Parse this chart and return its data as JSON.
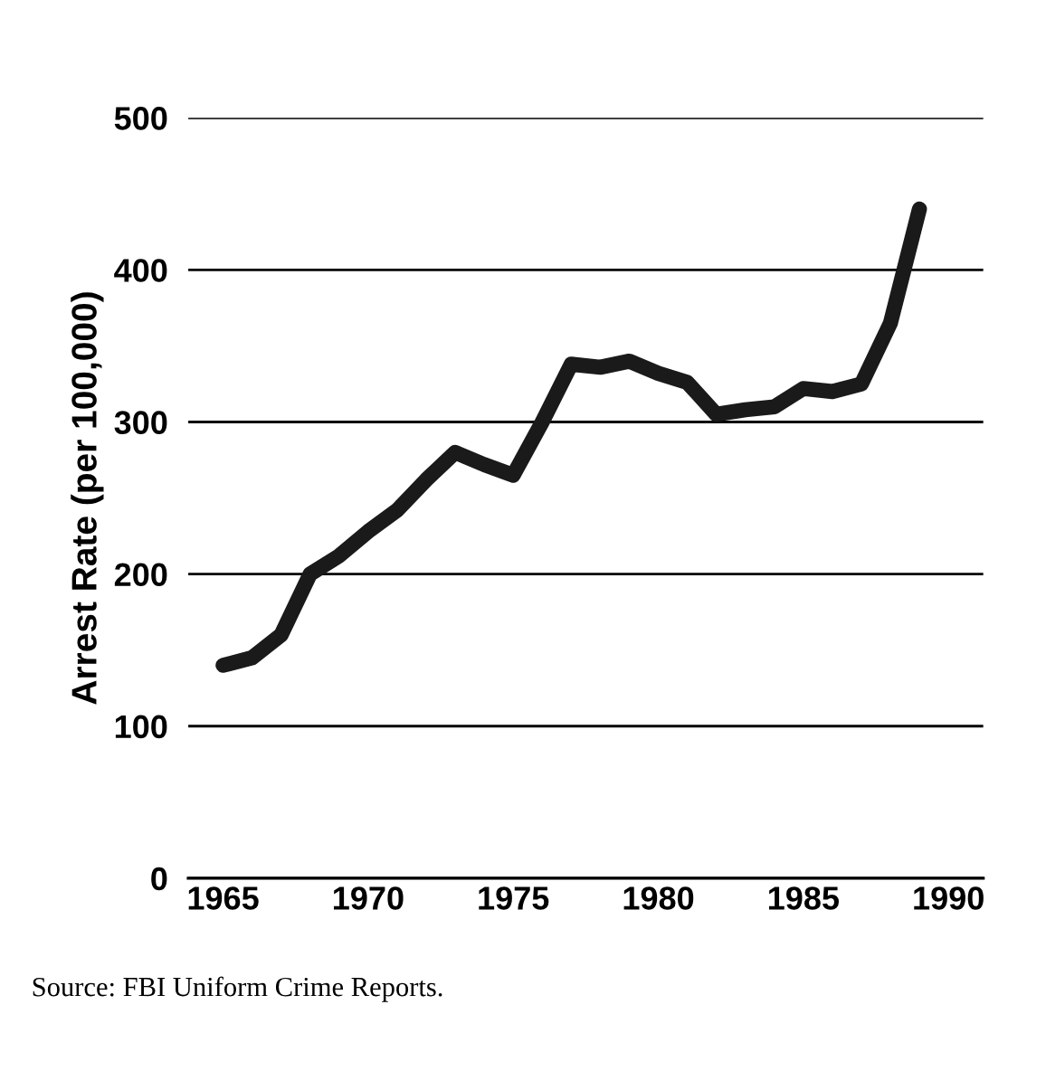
{
  "chart_data": {
    "type": "line",
    "ylabel": "Arrest Rate (per 100,000)",
    "x": [
      1965,
      1966,
      1967,
      1968,
      1969,
      1970,
      1971,
      1972,
      1973,
      1974,
      1975,
      1976,
      1977,
      1978,
      1979,
      1980,
      1981,
      1982,
      1983,
      1984,
      1985,
      1986,
      1987,
      1988,
      1989
    ],
    "series": [
      {
        "color": "#1a1a1a",
        "values": [
          140,
          145,
          160,
          200,
          212,
          228,
          242,
          262,
          280,
          272,
          265,
          300,
          338,
          336,
          340,
          332,
          326,
          305,
          308,
          310,
          322,
          320,
          325,
          365,
          440
        ]
      }
    ],
    "xlim": [
      1963.8,
      1991.2
    ],
    "ylim": [
      0,
      500
    ],
    "xticks": [
      1965,
      1970,
      1975,
      1980,
      1985,
      1990
    ],
    "yticks": [
      0,
      100,
      200,
      300,
      400,
      500
    ],
    "grid": "y",
    "marker": "none",
    "line_style": "solid",
    "annotations": [
      "Source: FBI Uniform Crime Reports."
    ]
  }
}
